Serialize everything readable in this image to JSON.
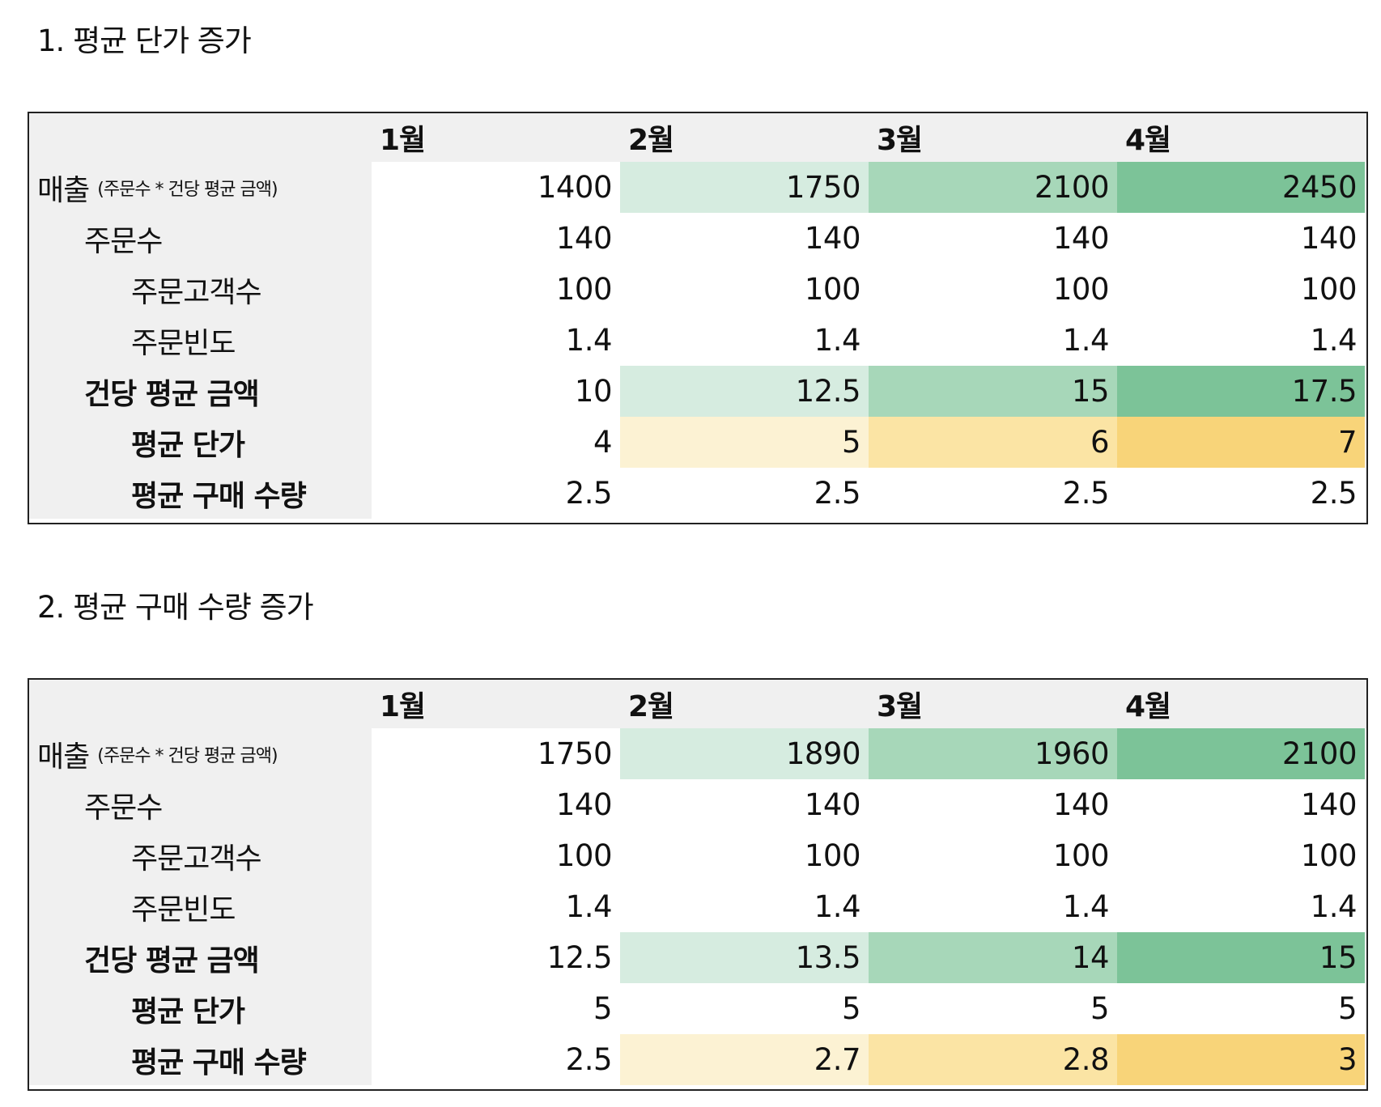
{
  "sections": [
    {
      "title": "1. 평균 단가 증가",
      "months": [
        "1월",
        "2월",
        "3월",
        "4월"
      ],
      "rows": [
        {
          "label": "매출",
          "sublabel": "(주문수 * 건당 평균 금액)",
          "values": [
            "1400",
            "1750",
            "2100",
            "2450"
          ]
        },
        {
          "label": "주문수",
          "values": [
            "140",
            "140",
            "140",
            "140"
          ]
        },
        {
          "label": "주문고객수",
          "values": [
            "100",
            "100",
            "100",
            "100"
          ]
        },
        {
          "label": "주문빈도",
          "values": [
            "1.4",
            "1.4",
            "1.4",
            "1.4"
          ]
        },
        {
          "label": "건당 평균 금액",
          "values": [
            "10",
            "12.5",
            "15",
            "17.5"
          ]
        },
        {
          "label": "평균 단가",
          "values": [
            "4",
            "5",
            "6",
            "7"
          ]
        },
        {
          "label": "평균 구매 수량",
          "values": [
            "2.5",
            "2.5",
            "2.5",
            "2.5"
          ]
        }
      ]
    },
    {
      "title": "2. 평균 구매 수량 증가",
      "months": [
        "1월",
        "2월",
        "3월",
        "4월"
      ],
      "rows": [
        {
          "label": "매출",
          "sublabel": "(주문수 * 건당 평균 금액)",
          "values": [
            "1750",
            "1890",
            "1960",
            "2100"
          ]
        },
        {
          "label": "주문수",
          "values": [
            "140",
            "140",
            "140",
            "140"
          ]
        },
        {
          "label": "주문고객수",
          "values": [
            "100",
            "100",
            "100",
            "100"
          ]
        },
        {
          "label": "주문빈도",
          "values": [
            "1.4",
            "1.4",
            "1.4",
            "1.4"
          ]
        },
        {
          "label": "건당 평균 금액",
          "values": [
            "12.5",
            "13.5",
            "14",
            "15"
          ]
        },
        {
          "label": "평균 단가",
          "values": [
            "5",
            "5",
            "5",
            "5"
          ]
        },
        {
          "label": "평균 구매 수량",
          "values": [
            "2.5",
            "2.7",
            "2.8",
            "3"
          ]
        }
      ]
    }
  ],
  "colors": {
    "header_bg": "#f0f0f0",
    "green_scale": [
      "#ffffff",
      "#d6ece0",
      "#a7d7b9",
      "#7cc398"
    ],
    "yellow_scale": [
      "#ffffff",
      "#fcf2d3",
      "#fbe4a4",
      "#f8d479"
    ]
  }
}
